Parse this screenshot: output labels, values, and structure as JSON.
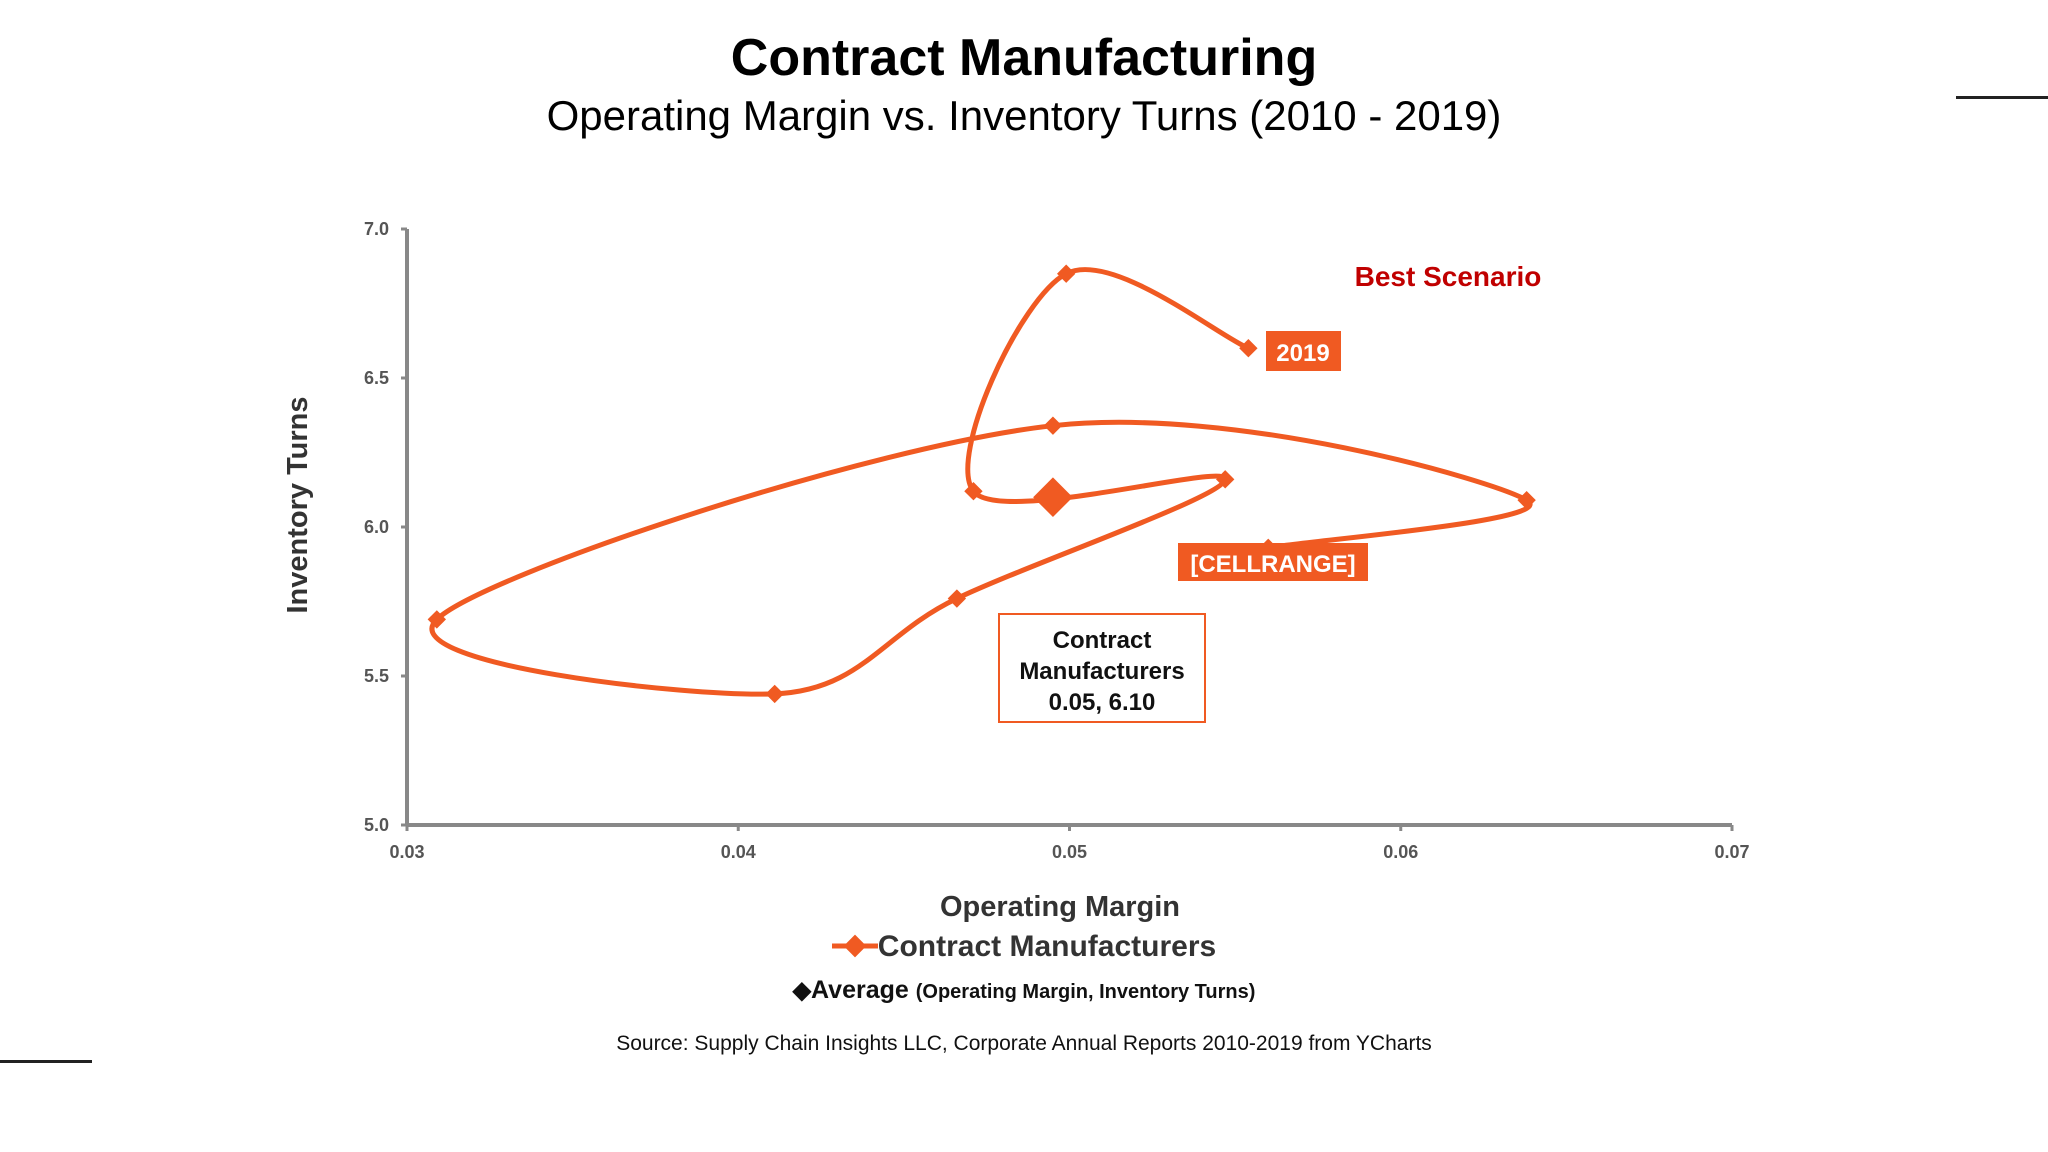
{
  "header": {
    "title": "Contract Manufacturing",
    "subtitle": "Operating Margin vs. Inventory Turns (2010 - 2019)"
  },
  "chart_data": {
    "type": "scatter",
    "xlabel": "Operating Margin",
    "ylabel": "Inventory Turns",
    "xlim": [
      0.03,
      0.07
    ],
    "ylim": [
      5.0,
      7.0
    ],
    "x_ticks": [
      "0.03",
      "0.04",
      "0.05",
      "0.06",
      "0.07"
    ],
    "y_ticks": [
      "5.0",
      "5.5",
      "6.0",
      "6.5",
      "7.0"
    ],
    "grid": false,
    "series": [
      {
        "name": "Contract Manufacturers",
        "color": "#f05a22",
        "smooth": true,
        "points": [
          {
            "x": 0.056,
            "y": 5.93
          },
          {
            "x": 0.0638,
            "y": 6.09
          },
          {
            "x": 0.0495,
            "y": 6.34
          },
          {
            "x": 0.0309,
            "y": 5.69
          },
          {
            "x": 0.0411,
            "y": 5.44
          },
          {
            "x": 0.0466,
            "y": 5.76
          },
          {
            "x": 0.0547,
            "y": 6.16
          },
          {
            "x": 0.0471,
            "y": 6.12
          },
          {
            "x": 0.0499,
            "y": 6.85
          },
          {
            "x": 0.0554,
            "y": 6.6
          }
        ]
      }
    ],
    "average": {
      "name": "Average",
      "x": 0.0495,
      "y": 6.1,
      "color": "#f05a22"
    },
    "annotations": {
      "best_scenario": "Best Scenario",
      "best_scenario_color": "#c00000",
      "label_2019": "2019",
      "label_cellrange": "[CELLRANGE]",
      "average_box": [
        "Contract",
        "Manufacturers",
        "0.05, 6.10"
      ]
    },
    "legend": {
      "series_label": "Contract Manufacturers",
      "average_label": "Average",
      "average_note": "(Operating Margin, Inventory Turns)",
      "average_glyph": "◆"
    }
  },
  "source": "Source:  Supply Chain Insights LLC, Corporate Annual Reports 2010-2019 from YCharts"
}
